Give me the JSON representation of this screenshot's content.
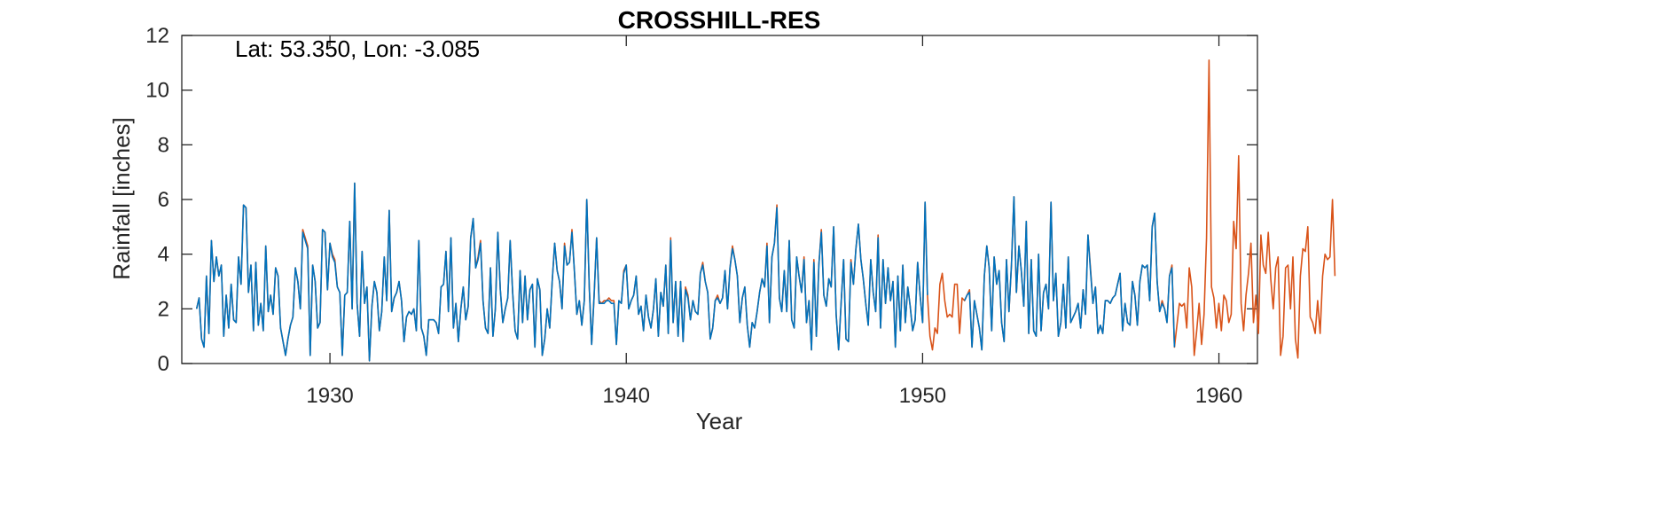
{
  "chart_data": {
    "type": "line",
    "title": "CROSSHILL-RES",
    "xlabel": "Year",
    "ylabel": "Rainfall [inches]",
    "annotation": "Lat: 53.350, Lon: -3.085",
    "xlim": [
      1925,
      1961.3
    ],
    "ylim": [
      0,
      12
    ],
    "xticks": [
      1930,
      1940,
      1950,
      1960
    ],
    "yticks": [
      0,
      2,
      4,
      6,
      8,
      10,
      12
    ],
    "grid": false,
    "box": true,
    "series": [
      {
        "color": "#D95319",
        "x0": 1925.5,
        "step": 0.08333,
        "values": [
          2.0,
          2.4,
          0.9,
          0.6,
          3.2,
          1.1,
          4.5,
          3.0,
          3.9,
          3.2,
          3.6,
          1.0,
          2.5,
          1.3,
          2.9,
          1.6,
          1.5,
          3.9,
          2.9,
          5.8,
          5.7,
          2.6,
          3.6,
          1.2,
          3.7,
          1.4,
          2.2,
          1.2,
          4.3,
          1.9,
          2.5,
          1.8,
          3.5,
          3.2,
          1.3,
          0.8,
          0.3,
          0.9,
          1.4,
          1.7,
          3.5,
          3.0,
          2.0,
          4.9,
          4.6,
          4.3,
          0.3,
          3.6,
          3.0,
          1.3,
          1.5,
          4.9,
          4.8,
          2.7,
          4.4,
          4.0,
          3.8,
          2.8,
          2.6,
          0.3,
          2.5,
          2.6,
          5.2,
          2.0,
          6.6,
          2.2,
          1.0,
          4.1,
          2.2,
          2.8,
          0.1,
          2.1,
          3.0,
          2.6,
          1.2,
          1.9,
          3.9,
          2.3,
          5.6,
          1.9,
          2.4,
          2.6,
          3.0,
          2.3,
          0.8,
          1.7,
          1.9,
          1.8,
          2.0,
          1.2,
          4.5,
          1.3,
          1.0,
          0.3,
          1.6,
          1.6,
          1.6,
          1.5,
          1.1,
          2.8,
          2.9,
          4.1,
          1.9,
          4.6,
          1.3,
          2.2,
          0.8,
          2.0,
          2.8,
          1.6,
          2.1,
          4.6,
          5.3,
          3.5,
          3.9,
          4.5,
          2.3,
          1.3,
          1.1,
          3.5,
          1.0,
          2.0,
          4.8,
          2.7,
          1.5,
          2.0,
          2.4,
          4.5,
          2.6,
          1.2,
          0.9,
          3.4,
          1.5,
          3.2,
          1.6,
          2.7,
          2.9,
          0.6,
          3.1,
          2.7,
          0.3,
          0.9,
          2.0,
          1.3,
          3.0,
          4.4,
          3.4,
          3.0,
          2.0,
          4.4,
          3.6,
          3.7,
          4.9,
          3.4,
          1.8,
          2.3,
          1.4,
          2.3,
          6.0,
          2.8,
          0.7,
          2.5,
          4.6,
          2.3,
          2.2,
          2.3,
          2.3,
          2.4,
          2.3,
          2.3,
          0.7,
          2.3,
          2.2,
          3.4,
          3.6,
          2.0,
          2.3,
          2.5,
          3.2,
          1.8,
          2.1,
          1.2,
          2.5,
          1.7,
          1.3,
          2.0,
          3.1,
          1.0,
          2.6,
          2.1,
          3.6,
          1.1,
          4.6,
          1.5,
          3.0,
          1.0,
          3.0,
          0.8,
          2.8,
          2.5,
          1.6,
          2.3,
          1.9,
          1.8,
          3.3,
          3.7,
          3.0,
          2.6,
          0.9,
          1.3,
          2.3,
          2.5,
          2.2,
          2.4,
          3.4,
          2.0,
          3.5,
          4.3,
          3.8,
          3.2,
          1.5,
          2.4,
          2.8,
          1.4,
          0.6,
          1.5,
          1.3,
          1.9,
          2.6,
          3.1,
          2.8,
          4.4,
          1.5,
          3.9,
          4.4,
          5.8,
          2.4,
          1.9,
          3.4,
          1.9,
          4.5,
          1.6,
          1.3,
          3.9,
          3.2,
          2.6,
          3.9,
          1.5,
          2.3,
          0.5,
          3.8,
          1.0,
          3.6,
          4.9,
          2.5,
          2.1,
          3.1,
          2.8,
          5.0,
          1.8,
          0.5,
          2.2,
          3.8,
          0.9,
          0.8,
          3.8,
          2.9,
          4.2,
          5.1,
          3.8,
          3.1,
          2.2,
          1.4,
          3.8,
          2.6,
          1.9,
          4.7,
          1.3,
          3.8,
          2.2,
          3.5,
          2.3,
          3.0,
          0.6,
          3.2,
          1.2,
          3.6,
          1.5,
          2.8,
          2.1,
          1.2,
          1.6,
          3.7,
          2.5,
          1.5,
          5.9,
          2.5,
          1.0,
          0.5,
          1.3,
          1.1,
          2.9,
          3.3,
          2.3,
          1.7,
          1.8,
          1.7,
          2.9,
          2.9,
          1.1,
          2.4,
          2.3,
          2.5,
          2.7,
          0.6,
          2.3,
          1.8,
          1.3,
          0.5,
          3.2,
          4.3,
          3.5,
          1.2,
          3.9,
          2.9,
          3.4,
          1.5,
          0.8,
          3.8,
          1.9,
          3.6,
          6.1,
          2.6,
          4.3,
          3.4,
          2.1,
          5.2,
          1.1,
          3.8,
          1.2,
          1.0,
          4.0,
          1.2,
          2.6,
          2.9,
          2.0,
          5.9,
          2.3,
          3.3,
          1.0,
          1.5,
          2.9,
          1.3,
          3.9,
          1.5,
          1.7,
          1.9,
          2.2,
          1.3,
          2.7,
          1.8,
          4.7,
          3.5,
          2.2,
          2.8,
          1.1,
          1.4,
          1.1,
          2.3,
          2.3,
          2.2,
          2.4,
          2.5,
          2.9,
          3.3,
          1.2,
          2.2,
          1.5,
          1.4,
          3.0,
          2.5,
          1.4,
          3.0,
          3.6,
          3.5,
          3.6,
          2.3,
          5.0,
          5.5,
          3.0,
          1.9,
          2.3,
          2.0,
          1.5,
          3.2,
          3.6,
          0.6,
          1.4,
          2.2,
          2.1,
          2.2,
          1.3,
          3.5,
          2.8,
          0.3,
          1.2,
          2.2,
          0.7,
          1.8,
          4.6,
          11.1,
          2.8,
          2.4,
          1.3,
          2.2,
          1.2,
          2.5,
          2.3,
          1.5,
          1.8,
          5.2,
          4.2,
          7.6,
          2.2,
          1.2,
          2.5,
          3.3,
          4.4,
          1.5,
          2.5,
          1.1,
          4.7,
          3.6,
          3.3,
          4.8,
          3.1,
          2.0,
          3.5,
          3.9,
          0.3,
          1.0,
          3.5,
          3.6,
          2.0,
          3.9,
          0.9,
          0.2,
          3.2,
          4.2,
          4.1,
          5.0,
          1.7,
          1.5,
          1.1,
          2.3,
          1.1,
          3.2,
          4.0,
          3.8,
          3.9,
          6.0,
          3.2
        ]
      },
      {
        "color": "#0072BD",
        "x0": 1925.5,
        "step": 0.08333,
        "values": [
          2.0,
          2.4,
          0.9,
          0.6,
          3.2,
          1.1,
          4.5,
          3.0,
          3.9,
          3.2,
          3.6,
          1.0,
          2.5,
          1.3,
          2.9,
          1.6,
          1.5,
          3.9,
          2.9,
          5.8,
          5.7,
          2.6,
          3.6,
          1.2,
          3.7,
          1.4,
          2.2,
          1.2,
          4.3,
          1.9,
          2.5,
          1.8,
          3.5,
          3.2,
          1.3,
          0.8,
          0.3,
          0.9,
          1.4,
          1.7,
          3.5,
          3.0,
          2.0,
          4.8,
          4.5,
          4.2,
          0.3,
          3.6,
          3.0,
          1.3,
          1.5,
          4.9,
          4.8,
          2.7,
          4.4,
          3.9,
          3.7,
          2.8,
          2.6,
          0.3,
          2.5,
          2.6,
          5.2,
          2.0,
          6.6,
          2.2,
          1.0,
          4.1,
          2.2,
          2.8,
          0.1,
          2.1,
          3.0,
          2.6,
          1.2,
          1.9,
          3.9,
          2.3,
          5.6,
          1.9,
          2.4,
          2.6,
          3.0,
          2.3,
          0.8,
          1.7,
          1.9,
          1.8,
          2.0,
          1.2,
          4.5,
          1.3,
          1.0,
          0.3,
          1.6,
          1.6,
          1.6,
          1.5,
          1.1,
          2.8,
          2.9,
          4.1,
          1.9,
          4.6,
          1.3,
          2.2,
          0.8,
          2.0,
          2.8,
          1.6,
          2.1,
          4.6,
          5.3,
          3.5,
          3.8,
          4.4,
          2.3,
          1.3,
          1.1,
          3.5,
          1.0,
          2.0,
          4.8,
          2.7,
          1.5,
          2.0,
          2.4,
          4.5,
          2.6,
          1.2,
          0.9,
          3.4,
          1.5,
          3.2,
          1.6,
          2.7,
          2.9,
          0.6,
          3.1,
          2.7,
          0.3,
          0.9,
          2.0,
          1.3,
          3.0,
          4.4,
          3.4,
          3.0,
          2.0,
          4.3,
          3.6,
          3.7,
          4.8,
          3.4,
          1.8,
          2.3,
          1.4,
          2.3,
          6.0,
          2.8,
          0.7,
          2.5,
          4.6,
          2.2,
          2.2,
          2.2,
          2.3,
          2.3,
          2.2,
          2.2,
          0.7,
          2.3,
          2.2,
          3.3,
          3.6,
          2.0,
          2.3,
          2.5,
          3.2,
          1.8,
          2.1,
          1.2,
          2.5,
          1.7,
          1.3,
          2.0,
          3.1,
          1.0,
          2.6,
          2.1,
          3.6,
          1.1,
          4.5,
          1.5,
          3.0,
          1.0,
          3.0,
          0.8,
          2.7,
          2.4,
          1.6,
          2.3,
          1.9,
          1.8,
          3.3,
          3.6,
          3.0,
          2.6,
          0.9,
          1.3,
          2.3,
          2.4,
          2.2,
          2.4,
          3.4,
          2.0,
          3.5,
          4.2,
          3.8,
          3.2,
          1.5,
          2.4,
          2.8,
          1.4,
          0.6,
          1.5,
          1.3,
          1.9,
          2.6,
          3.1,
          2.8,
          4.3,
          1.5,
          3.9,
          4.4,
          5.7,
          2.4,
          1.9,
          3.4,
          1.9,
          4.5,
          1.6,
          1.3,
          3.9,
          3.2,
          2.6,
          3.8,
          1.5,
          2.3,
          0.5,
          3.7,
          1.0,
          3.6,
          4.8,
          2.5,
          2.1,
          3.1,
          2.8,
          5.0,
          1.8,
          0.5,
          2.2,
          3.8,
          0.9,
          0.8,
          3.7,
          2.9,
          4.2,
          5.1,
          3.8,
          3.1,
          2.2,
          1.4,
          3.8,
          2.6,
          1.9,
          4.6,
          1.3,
          3.8,
          2.2,
          3.5,
          2.3,
          3.0,
          0.6,
          3.2,
          1.2,
          3.6,
          1.5,
          2.8,
          2.1,
          1.2,
          1.6,
          3.7,
          2.5,
          1.5,
          5.9,
          2.5,
          null,
          null,
          null,
          null,
          null,
          null,
          null,
          null,
          null,
          null,
          null,
          null,
          null,
          null,
          2.3,
          2.5,
          2.6,
          0.6,
          2.3,
          1.8,
          1.3,
          0.5,
          3.2,
          4.3,
          3.5,
          1.2,
          3.9,
          2.9,
          3.4,
          1.5,
          0.8,
          3.8,
          1.9,
          3.6,
          6.1,
          2.6,
          4.3,
          3.4,
          2.1,
          5.2,
          1.1,
          3.8,
          1.2,
          1.0,
          4.0,
          1.2,
          2.6,
          2.9,
          2.0,
          5.9,
          2.3,
          3.3,
          1.0,
          1.5,
          2.9,
          1.3,
          3.9,
          1.5,
          1.7,
          1.9,
          2.2,
          1.3,
          2.7,
          1.8,
          4.7,
          3.4,
          2.2,
          2.8,
          1.1,
          1.4,
          1.1,
          2.3,
          2.3,
          2.2,
          2.4,
          2.5,
          2.9,
          3.3,
          1.2,
          2.2,
          1.5,
          1.4,
          3.0,
          2.5,
          1.4,
          3.0,
          3.6,
          3.5,
          3.6,
          2.3,
          5.0,
          5.5,
          3.0,
          1.9,
          2.2,
          2.0,
          1.5,
          3.2,
          3.5,
          0.6
        ]
      }
    ]
  }
}
